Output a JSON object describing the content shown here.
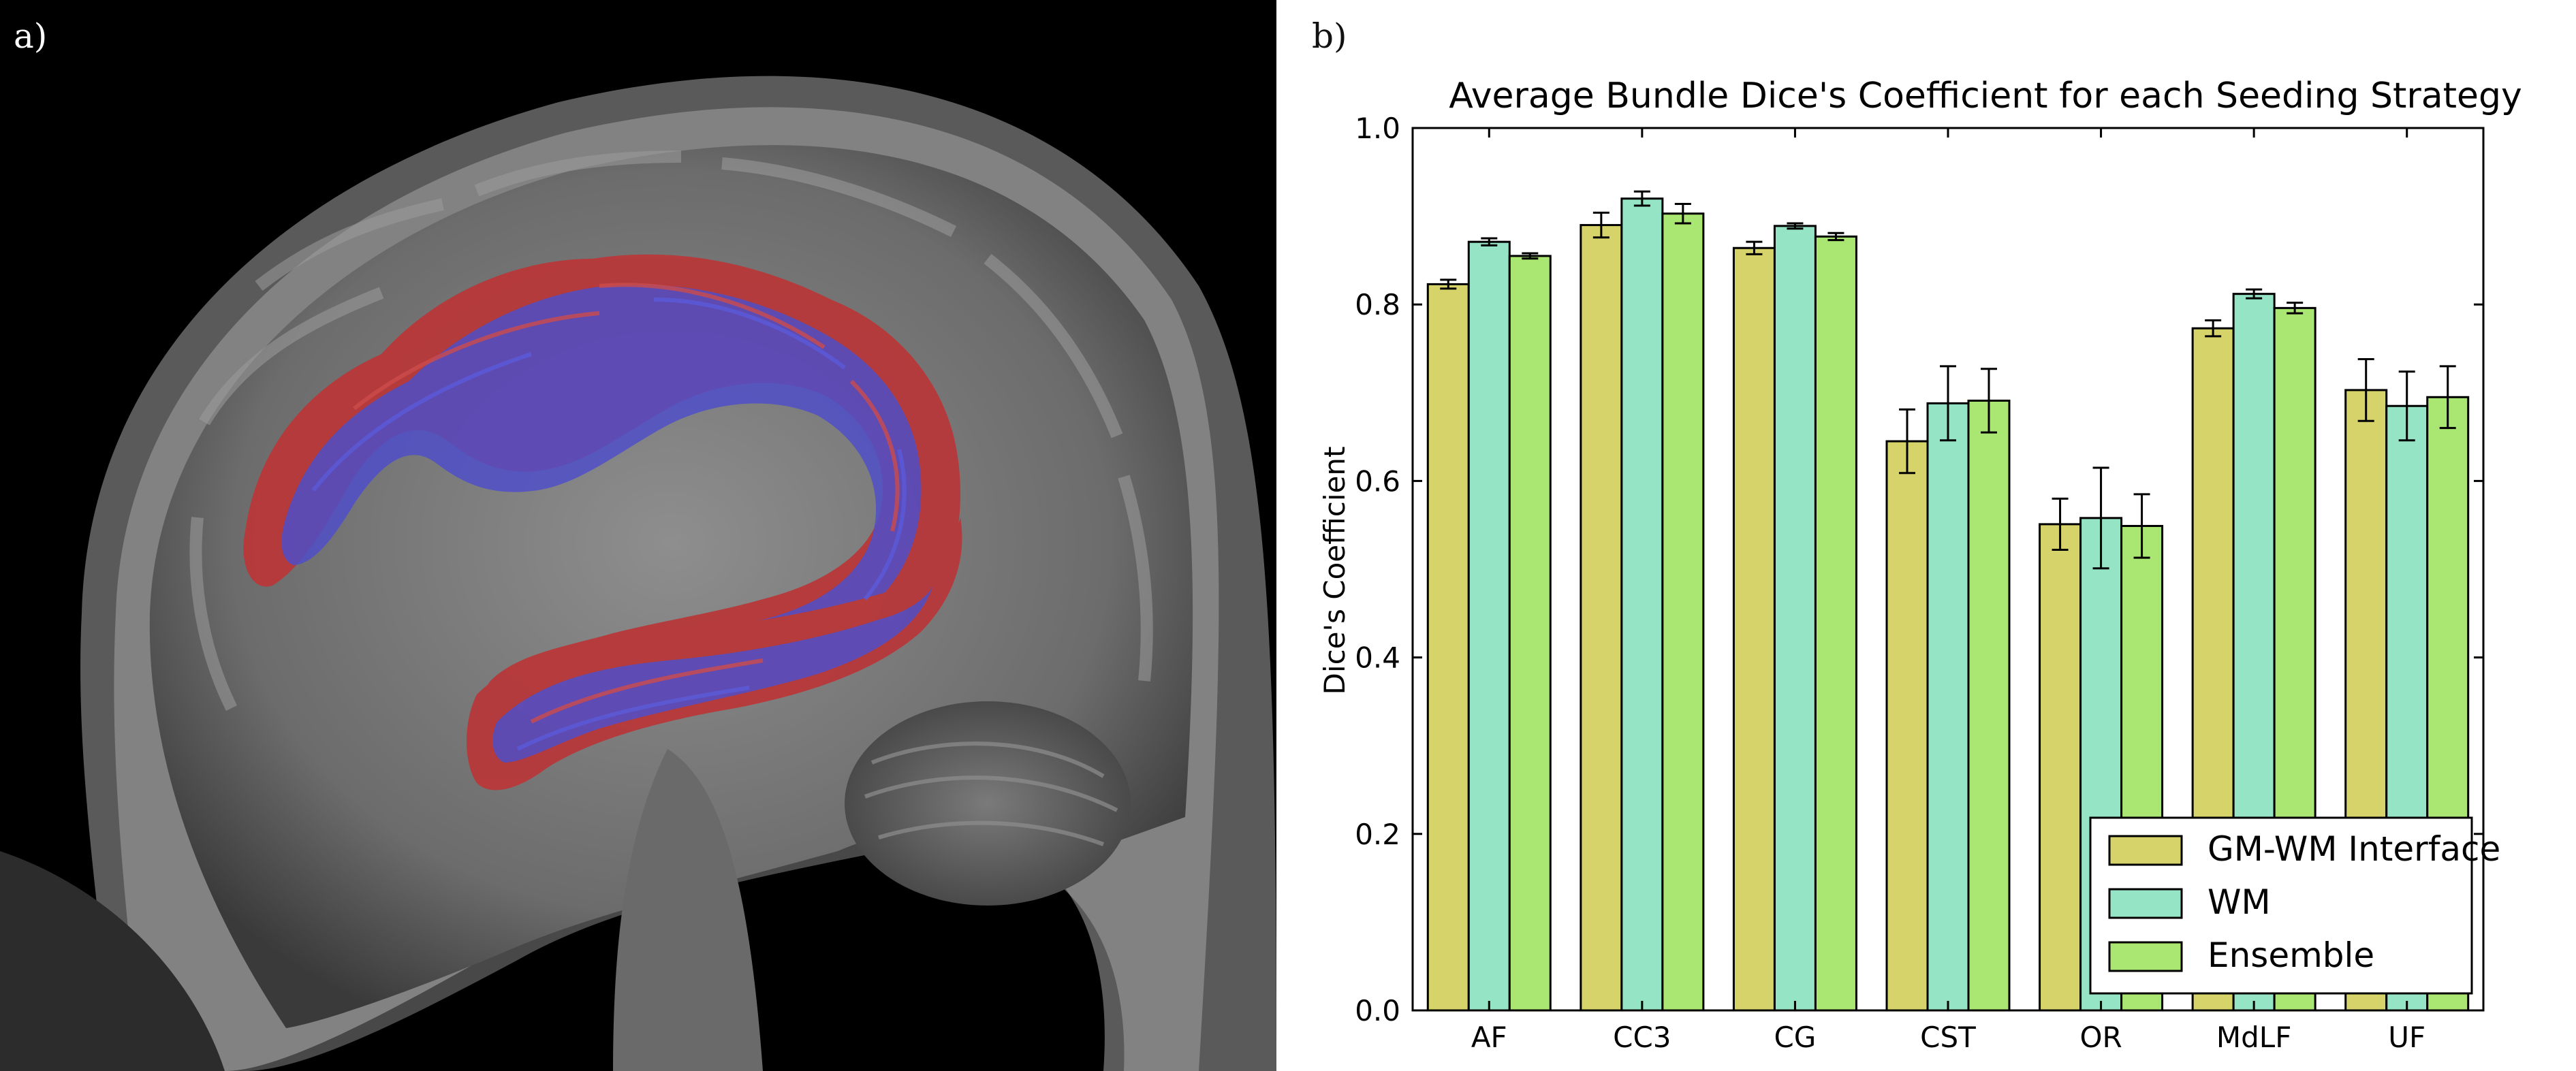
{
  "panels": {
    "a_label": "a)",
    "b_label": "b)"
  },
  "colors": {
    "gm_wm": "#d6d36a",
    "wm": "#96e4c6",
    "ensemble": "#aae672",
    "tract_red": "#b8383a",
    "tract_blue": "#4c4ccc"
  },
  "chart_data": {
    "type": "bar",
    "title": "Average Bundle Dice's Coefficient for each Seeding Strategy",
    "xlabel": "",
    "ylabel": "Dice's Coefficient",
    "ylim": [
      0.0,
      1.0
    ],
    "yticks": [
      "0.0",
      "0.2",
      "0.4",
      "0.6",
      "0.8",
      "1.0"
    ],
    "categories": [
      "AF",
      "CC3",
      "CG",
      "CST",
      "OR",
      "MdLF",
      "UF"
    ],
    "series": [
      {
        "name": "GM-WM Interface",
        "color": "#d6d36a",
        "values": [
          0.823,
          0.89,
          0.864,
          0.645,
          0.551,
          0.773,
          0.703
        ],
        "errors": [
          0.005,
          0.014,
          0.007,
          0.036,
          0.029,
          0.009,
          0.035
        ]
      },
      {
        "name": "WM",
        "color": "#96e4c6",
        "values": [
          0.871,
          0.92,
          0.889,
          0.688,
          0.558,
          0.812,
          0.685
        ],
        "errors": [
          0.004,
          0.008,
          0.003,
          0.042,
          0.057,
          0.005,
          0.039
        ]
      },
      {
        "name": "Ensemble",
        "color": "#aae672",
        "values": [
          0.855,
          0.903,
          0.877,
          0.691,
          0.549,
          0.796,
          0.695
        ],
        "errors": [
          0.003,
          0.011,
          0.004,
          0.036,
          0.036,
          0.006,
          0.035
        ]
      }
    ],
    "legend_position": "lower-right",
    "grid": false
  }
}
